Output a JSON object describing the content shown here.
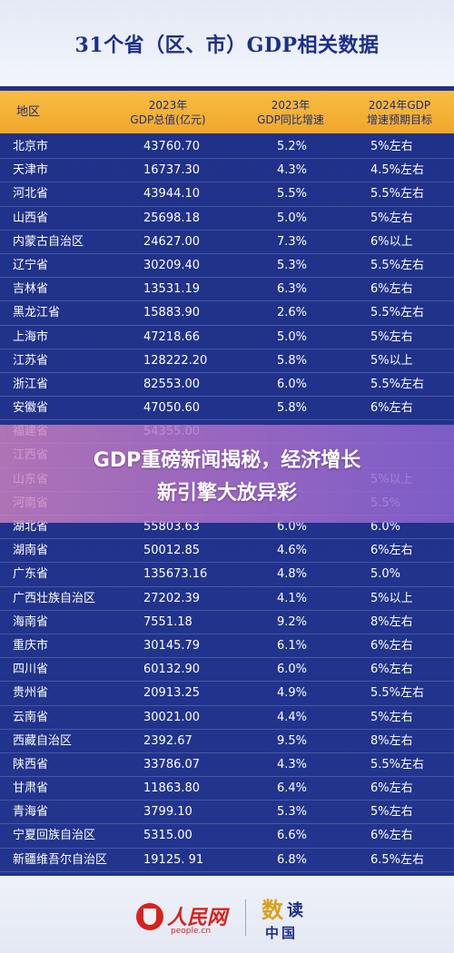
{
  "title": "31个省（区、市）GDP相关数据",
  "table": {
    "headers": [
      {
        "line1": "地区",
        "line2": ""
      },
      {
        "line1": "2023年",
        "line2": "GDP总值(亿元)"
      },
      {
        "line1": "2023年",
        "line2": "GDP同比增速"
      },
      {
        "line1": "2024年GDP",
        "line2": "增速预期目标"
      }
    ],
    "rows": [
      {
        "name": "北京市",
        "gdp": "43760.70",
        "growth": "5.2%",
        "target": "5%左右"
      },
      {
        "name": "天津市",
        "gdp": "16737.30",
        "growth": "4.3%",
        "target": "4.5%左右"
      },
      {
        "name": "河北省",
        "gdp": "43944.10",
        "growth": "5.5%",
        "target": "5.5%左右"
      },
      {
        "name": "山西省",
        "gdp": "25698.18",
        "growth": "5.0%",
        "target": "5%左右"
      },
      {
        "name": "内蒙古自治区",
        "gdp": "24627.00",
        "growth": "7.3%",
        "target": "6%以上"
      },
      {
        "name": "辽宁省",
        "gdp": "30209.40",
        "growth": "5.3%",
        "target": "5.5%左右"
      },
      {
        "name": "吉林省",
        "gdp": "13531.19",
        "growth": "6.3%",
        "target": "6%左右"
      },
      {
        "name": "黑龙江省",
        "gdp": "15883.90",
        "growth": "2.6%",
        "target": "5.5%左右"
      },
      {
        "name": "上海市",
        "gdp": "47218.66",
        "growth": "5.0%",
        "target": "5%左右"
      },
      {
        "name": "江苏省",
        "gdp": "128222.20",
        "growth": "5.8%",
        "target": "5%以上"
      },
      {
        "name": "浙江省",
        "gdp": "82553.00",
        "growth": "6.0%",
        "target": "5.5%左右"
      },
      {
        "name": "安徽省",
        "gdp": "47050.60",
        "growth": "5.8%",
        "target": "6%左右"
      },
      {
        "name": "福建省",
        "gdp": "54355.00",
        "growth": "",
        "target": ""
      },
      {
        "name": "江西省",
        "gdp": "",
        "growth": "",
        "target": ""
      },
      {
        "name": "山东省",
        "gdp": "",
        "growth": "",
        "target": "5%以上"
      },
      {
        "name": "河南省",
        "gdp": "",
        "growth": "",
        "target": "5.5%"
      },
      {
        "name": "湖北省",
        "gdp": "55803.63",
        "growth": "6.0%",
        "target": "6.0%"
      },
      {
        "name": "湖南省",
        "gdp": "50012.85",
        "growth": "4.6%",
        "target": "6%左右"
      },
      {
        "name": "广东省",
        "gdp": "135673.16",
        "growth": "4.8%",
        "target": "5.0%"
      },
      {
        "name": "广西壮族自治区",
        "gdp": "27202.39",
        "growth": "4.1%",
        "target": "5%以上"
      },
      {
        "name": "海南省",
        "gdp": "7551.18",
        "growth": "9.2%",
        "target": "8%左右"
      },
      {
        "name": "重庆市",
        "gdp": "30145.79",
        "growth": "6.1%",
        "target": "6%左右"
      },
      {
        "name": "四川省",
        "gdp": "60132.90",
        "growth": "6.0%",
        "target": "6%左右"
      },
      {
        "name": "贵州省",
        "gdp": "20913.25",
        "growth": "4.9%",
        "target": "5.5%左右"
      },
      {
        "name": "云南省",
        "gdp": "30021.00",
        "growth": "4.4%",
        "target": "5%左右"
      },
      {
        "name": "西藏自治区",
        "gdp": "2392.67",
        "growth": "9.5%",
        "target": "8%左右"
      },
      {
        "name": "陕西省",
        "gdp": "33786.07",
        "growth": "4.3%",
        "target": "5.5%左右"
      },
      {
        "name": "甘肃省",
        "gdp": "11863.80",
        "growth": "6.4%",
        "target": "6%左右"
      },
      {
        "name": "青海省",
        "gdp": "3799.10",
        "growth": "5.3%",
        "target": "5%左右"
      },
      {
        "name": "宁夏回族自治区",
        "gdp": "5315.00",
        "growth": "6.6%",
        "target": "6%左右"
      },
      {
        "name": "新疆维吾尔自治区",
        "gdp": "19125. 91",
        "growth": "6.8%",
        "target": "6.5%左右"
      }
    ]
  },
  "overlay": {
    "line1": "GDP重磅新闻揭秘，经济增长",
    "line2": "新引擎大放异彩"
  },
  "footer": {
    "logo1_cn": "人民网",
    "logo1_en": "people.cn",
    "logo2_top_a": "数",
    "logo2_top_b": "读",
    "logo2_bottom": "中国"
  }
}
